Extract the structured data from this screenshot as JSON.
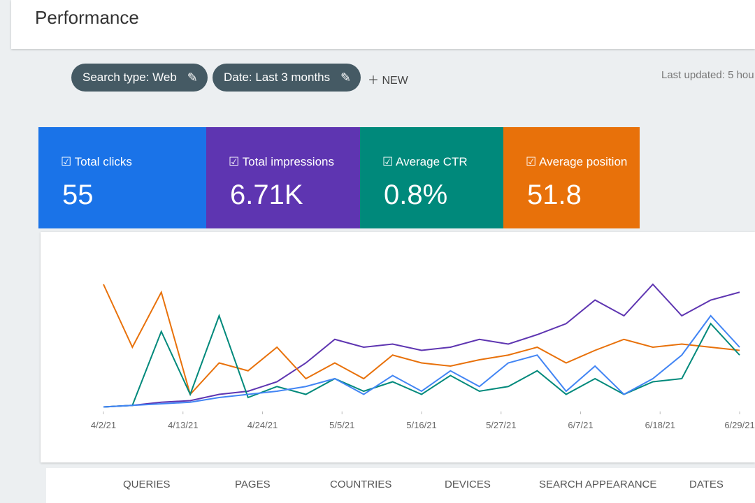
{
  "header": {
    "title": "Performance"
  },
  "filters": {
    "items": [
      "Search type: Web",
      "Date: Last 3 months"
    ],
    "new": "NEW",
    "last_updated": "Last updated: 5 hou"
  },
  "metrics": [
    {
      "label": "Total clicks",
      "value": "55",
      "color": "#1a73e8"
    },
    {
      "label": "Total impressions",
      "value": "6.71K",
      "color": "#5e35b1"
    },
    {
      "label": "Average CTR",
      "value": "0.8%",
      "color": "#00897b"
    },
    {
      "label": "Average position",
      "value": "51.8",
      "color": "#e8710a"
    }
  ],
  "chart_data": {
    "type": "line",
    "x": [
      0,
      4,
      8,
      12,
      16,
      20,
      24,
      28,
      32,
      36,
      40,
      44,
      48,
      52,
      56,
      60,
      64,
      68,
      72,
      76,
      80,
      84,
      88
    ],
    "xlim": [
      0,
      88
    ],
    "xticks": [
      {
        "value": 0,
        "label": "4/2/21"
      },
      {
        "value": 11,
        "label": "4/13/21"
      },
      {
        "value": 22,
        "label": "4/24/21"
      },
      {
        "value": 33,
        "label": "5/5/21"
      },
      {
        "value": 44,
        "label": "5/16/21"
      },
      {
        "value": 55,
        "label": "5/27/21"
      },
      {
        "value": 66,
        "label": "6/7/21"
      },
      {
        "value": 77,
        "label": "6/18/21"
      },
      {
        "value": 88,
        "label": "6/29/21"
      }
    ],
    "ylim": [
      0,
      100
    ],
    "series": [
      {
        "name": "Total impressions",
        "color": "#5e35b1",
        "values": [
          2,
          3,
          5,
          6,
          10,
          12,
          18,
          30,
          45,
          40,
          42,
          38,
          40,
          45,
          42,
          48,
          55,
          70,
          60,
          80,
          60,
          70,
          75
        ]
      },
      {
        "name": "Average position",
        "color": "#e8710a",
        "values": [
          80,
          40,
          75,
          10,
          30,
          25,
          40,
          20,
          30,
          20,
          35,
          30,
          28,
          32,
          35,
          40,
          30,
          38,
          45,
          40,
          42,
          40,
          38
        ]
      },
      {
        "name": "Average CTR",
        "color": "#00897b",
        "values": [
          2,
          3,
          50,
          10,
          60,
          8,
          15,
          10,
          20,
          12,
          18,
          10,
          22,
          12,
          15,
          25,
          10,
          20,
          10,
          18,
          20,
          55,
          35
        ]
      },
      {
        "name": "Total clicks",
        "color": "#4285f4",
        "values": [
          2,
          3,
          4,
          5,
          8,
          10,
          12,
          15,
          20,
          10,
          22,
          12,
          25,
          15,
          30,
          35,
          12,
          28,
          10,
          20,
          35,
          60,
          40
        ]
      }
    ]
  },
  "tabs": [
    "QUERIES",
    "PAGES",
    "COUNTRIES",
    "DEVICES",
    "SEARCH APPEARANCE",
    "DATES"
  ]
}
